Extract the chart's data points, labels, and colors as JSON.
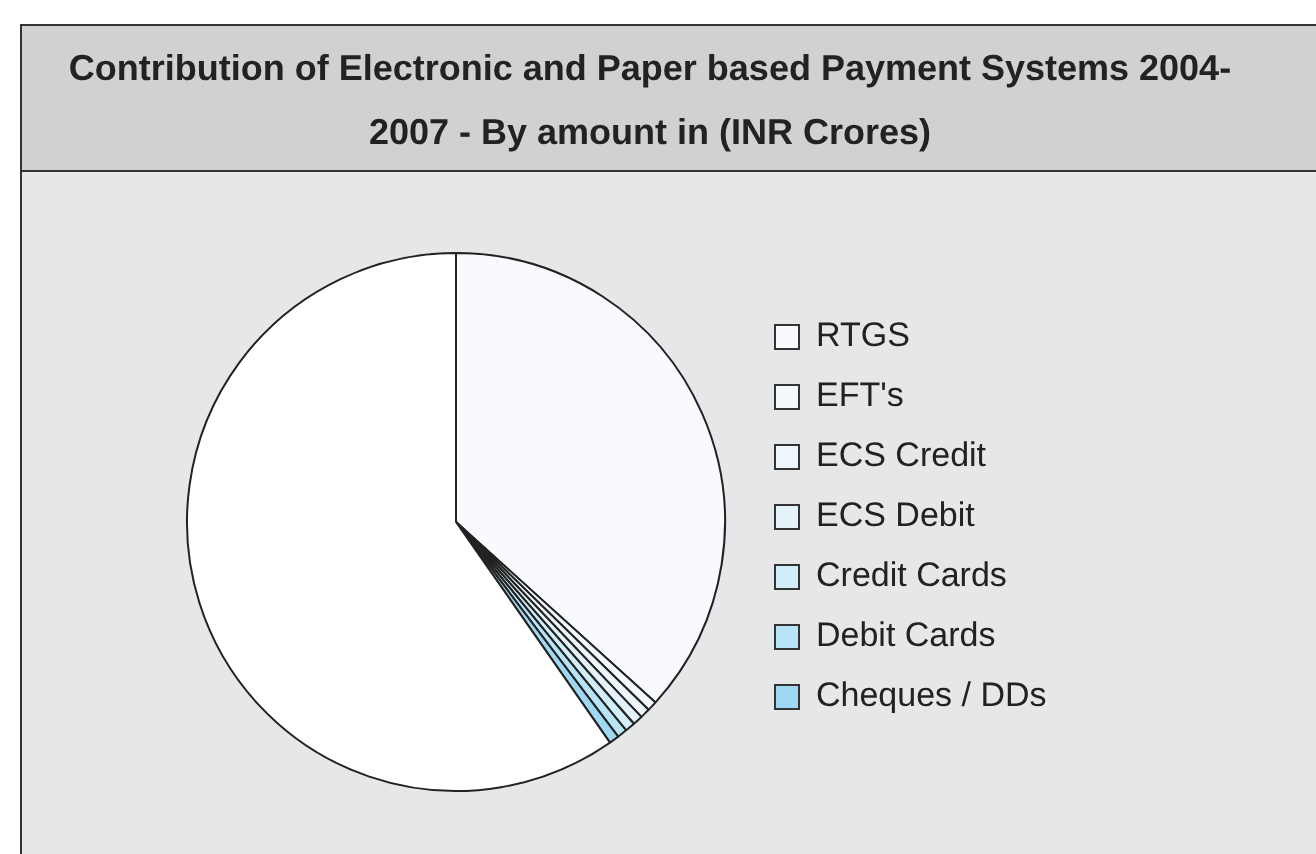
{
  "chart_data": {
    "type": "pie",
    "title": "Contribution of Electronic and Paper based Payment Systems 2004-2007 - By amount  in (INR Crores)",
    "categories": [
      "RTGS",
      "EFT's",
      "ECS Credit",
      "ECS Debit",
      "Credit Cards",
      "Debit Cards",
      "Cheques / DDs",
      null
    ],
    "values": [
      36.7,
      0.6,
      0.6,
      0.6,
      0.6,
      0.6,
      0.6,
      59.7
    ],
    "colors": [
      "#f8fafd",
      "#f3f8fc",
      "#edf6fb",
      "#e4f3fa",
      "#d2eefa",
      "#b8e4f7",
      "#9ed8f2",
      "#ffffff"
    ],
    "legend": "right"
  }
}
